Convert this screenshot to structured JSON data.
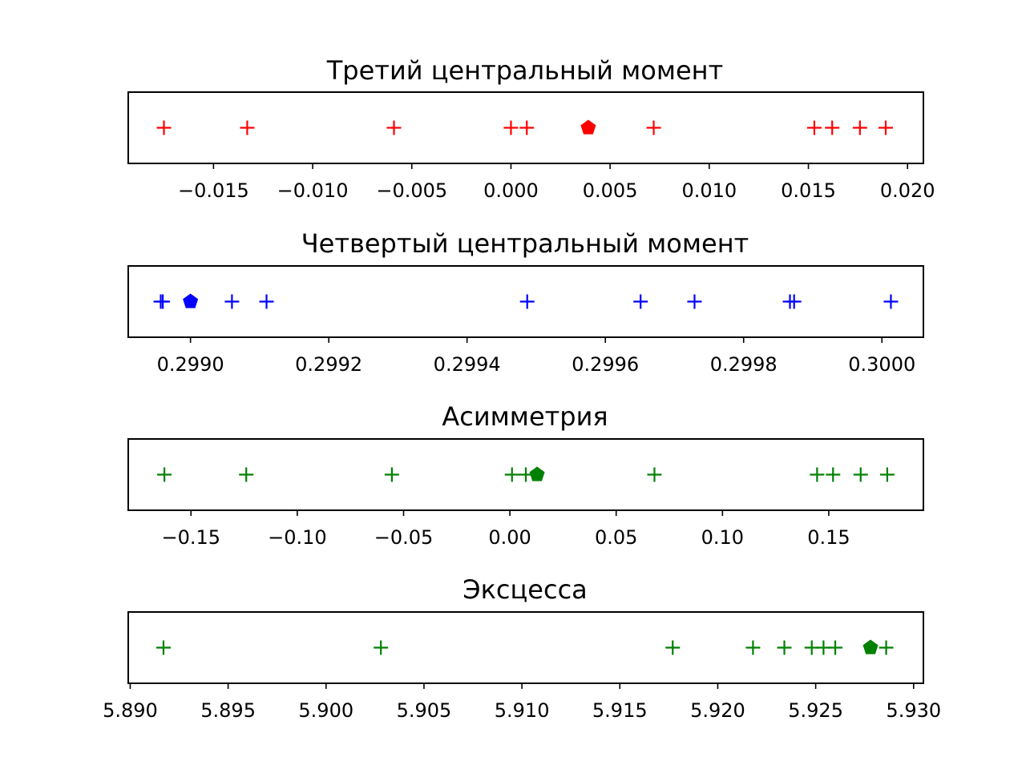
{
  "chart_data": [
    {
      "type": "scatter",
      "title": "Третий центральный момент",
      "color": "#ff0000",
      "xlim": [
        -0.0193,
        0.0208
      ],
      "ticks": [
        -0.015,
        -0.01,
        -0.005,
        0.0,
        0.005,
        0.01,
        0.015,
        0.02
      ],
      "tick_labels": [
        "−0.015",
        "−0.010",
        "−0.005",
        "0.000",
        "0.005",
        "0.010",
        "0.015",
        "0.020"
      ],
      "points": [
        -0.0175,
        -0.0133,
        -0.0059,
        0.0,
        0.0008,
        0.0072,
        0.0153,
        0.0162,
        0.0176,
        0.0189
      ],
      "highlight": 0.0039,
      "point_marker": "plus",
      "highlight_marker": "pentagon"
    },
    {
      "type": "scatter",
      "title": "Четвертый центральный момент",
      "color": "#0000ff",
      "xlim": [
        0.29891,
        0.30006
      ],
      "ticks": [
        0.299,
        0.2992,
        0.2994,
        0.2996,
        0.2998,
        0.3
      ],
      "tick_labels": [
        "0.2990",
        "0.2992",
        "0.2994",
        "0.2996",
        "0.2998",
        "0.3000"
      ],
      "points": [
        0.298957,
        0.29896,
        0.29906,
        0.29911,
        0.299487,
        0.299651,
        0.299729,
        0.299867,
        0.299873,
        0.300013
      ],
      "highlight": 0.299,
      "point_marker": "plus",
      "highlight_marker": "pentagon"
    },
    {
      "type": "scatter",
      "title": "Асимметрия",
      "color": "#008000",
      "xlim": [
        -0.1795,
        0.1945
      ],
      "ticks": [
        -0.15,
        -0.1,
        -0.05,
        0.0,
        0.05,
        0.1,
        0.15
      ],
      "tick_labels": [
        "−0.15",
        "−0.10",
        "−0.05",
        "0.00",
        "0.05",
        "0.10",
        "0.15"
      ],
      "points": [
        -0.1625,
        -0.124,
        -0.0555,
        0.001,
        0.0075,
        0.068,
        0.1445,
        0.152,
        0.165,
        0.1775
      ],
      "highlight": 0.0128,
      "point_marker": "plus",
      "highlight_marker": "pentagon"
    },
    {
      "type": "scatter",
      "title": "Эксцесса",
      "color": "#008000",
      "xlim": [
        5.8899,
        5.9305
      ],
      "ticks": [
        5.89,
        5.895,
        5.9,
        5.905,
        5.91,
        5.915,
        5.92,
        5.925,
        5.93
      ],
      "tick_labels": [
        "5.890",
        "5.895",
        "5.900",
        "5.905",
        "5.910",
        "5.915",
        "5.920",
        "5.925",
        "5.930"
      ],
      "points": [
        5.8917,
        5.9028,
        5.9177,
        5.9218,
        5.9234,
        5.9248,
        5.9254,
        5.926,
        5.9286
      ],
      "highlight": 5.9278,
      "point_marker": "plus",
      "highlight_marker": "pentagon"
    }
  ]
}
